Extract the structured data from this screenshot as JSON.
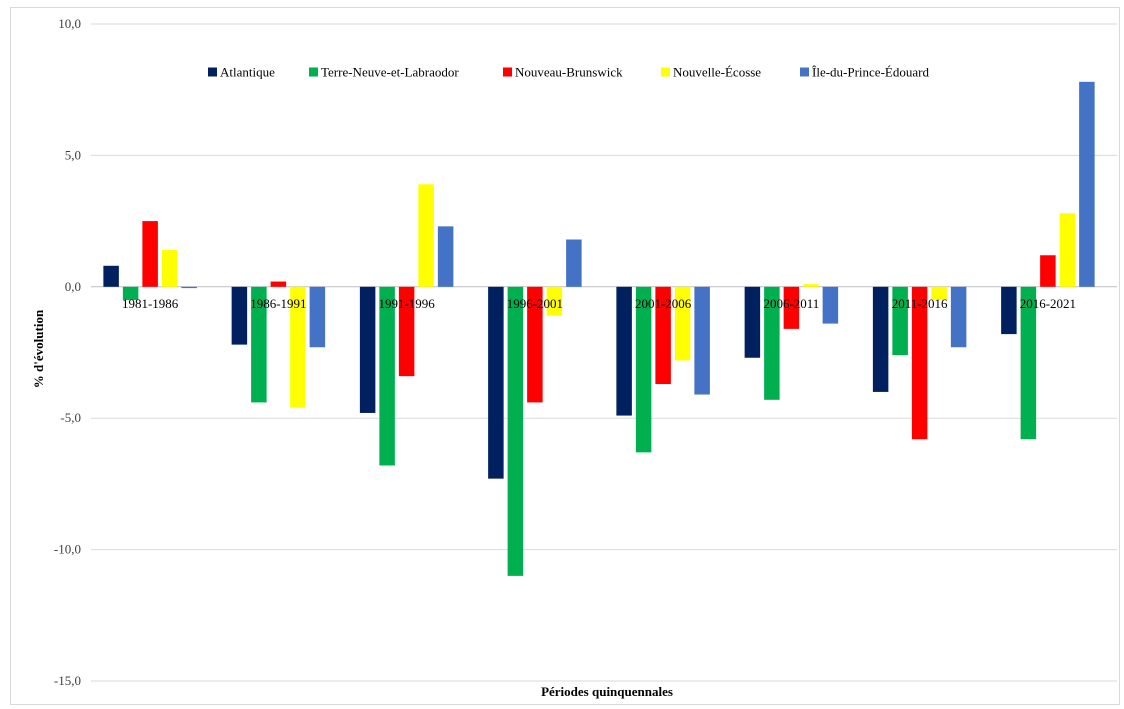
{
  "chart_data": {
    "type": "bar",
    "xlabel": "Périodes quinquennales",
    "ylabel": "% d'évolution",
    "ylim": [
      -15,
      10
    ],
    "yticks": [
      10,
      5,
      0,
      -5,
      -10,
      -15
    ],
    "ytick_labels": [
      "10,0",
      "5,0",
      "0,0",
      "-5,0",
      "-10,0",
      "-15,0"
    ],
    "grid": true,
    "legend_position": "top",
    "categories": [
      "1981-1986",
      "1986-1991",
      "1991-1996",
      "1996-2001",
      "2001-2006",
      "2006-2011",
      "2011-2016",
      "2016-2021"
    ],
    "series": [
      {
        "name": "Atlantique",
        "color": "#002060",
        "values": [
          0.8,
          -2.2,
          -4.8,
          -7.3,
          -4.9,
          -2.7,
          -4.0,
          -1.8
        ]
      },
      {
        "name": "Terre-Neuve-et-Labraodor",
        "color": "#00B050",
        "values": [
          -0.5,
          -4.4,
          -6.8,
          -11.0,
          -6.3,
          -4.3,
          -2.6,
          -5.8
        ]
      },
      {
        "name": "Nouveau-Brunswick",
        "color": "#FF0000",
        "values": [
          2.5,
          0.2,
          -3.4,
          -4.4,
          -3.7,
          -1.6,
          -5.8,
          1.2
        ]
      },
      {
        "name": "Nouvelle-Écosse",
        "color": "#FFFF00",
        "values": [
          1.4,
          -4.6,
          3.9,
          -1.1,
          -2.8,
          0.1,
          -0.5,
          2.8
        ]
      },
      {
        "name": "Île-du-Prince-Édouard",
        "color": "#4472C4",
        "values": [
          -0.05,
          -2.3,
          2.3,
          1.8,
          -4.1,
          -1.4,
          -2.3,
          7.8
        ]
      }
    ]
  }
}
